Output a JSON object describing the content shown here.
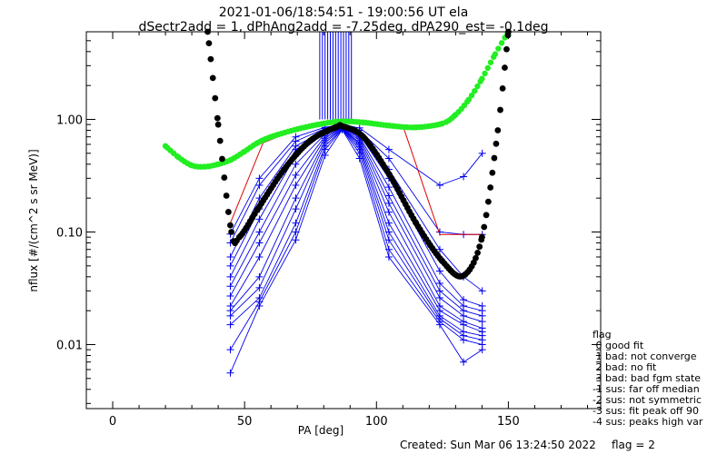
{
  "title_line1": "2021-01-06/18:54:51 - 19:00:56 UT ela",
  "title_line2": "dSectr2add = 1, dPhAng2add = -7.25deg, dPA290_est=   -0.1deg",
  "footer": {
    "created": "Created: Sun Mar 06 13:24:50 2022",
    "flag": "flag = 2"
  },
  "legend": {
    "title": "flag",
    "entries": [
      " 0 good fit",
      " 1 bad: not converge",
      " 2 bad: no fit",
      " 3 bad: bad fgm state",
      "-1 sus: far off median",
      "-2 sus: not symmetric",
      "-3 sus: fit peak off 90",
      "-4 sus: peaks high var"
    ]
  },
  "colors": {
    "data": "#0000ee",
    "fit_black": "#000000",
    "fit_green": "#22ee22",
    "median_red": "#dd0000",
    "axes": "#000000"
  },
  "chart_data": {
    "type": "line",
    "xlabel": "PA [deg]",
    "ylabel": "nflux [#/(cm^2 s sr MeV)]",
    "xlim": [
      -10,
      185
    ],
    "ylim": [
      0.0027,
      6.0
    ],
    "yscale": "log",
    "xticks": [
      0,
      50,
      100,
      150
    ],
    "xtick_labels": [
      "0",
      "50",
      "100",
      "150"
    ],
    "yticks": [
      0.01,
      0.1,
      1.0
    ],
    "ytick_labels": [
      "0.01",
      "0.10",
      "1.00"
    ],
    "pa_x": [
      44.6,
      55.6,
      69.4,
      80.5,
      87.0,
      93.6,
      104.7,
      124.0,
      133.0,
      140.1
    ],
    "series": [
      {
        "values": [
          0.096,
          0.3,
          0.7,
          0.85,
          0.9,
          0.84,
          0.54,
          0.26,
          0.31,
          0.5
        ]
      },
      {
        "values": [
          0.08,
          0.26,
          0.64,
          0.83,
          0.88,
          0.8,
          0.45,
          0.1,
          0.095,
          0.095
        ]
      },
      {
        "values": [
          0.06,
          0.2,
          0.58,
          0.8,
          0.87,
          0.76,
          0.36,
          0.07,
          0.04,
          0.03
        ]
      },
      {
        "values": [
          0.05,
          0.16,
          0.54,
          0.78,
          0.86,
          0.73,
          0.3,
          0.045,
          0.025,
          0.022
        ]
      },
      {
        "values": [
          0.04,
          0.13,
          0.48,
          0.76,
          0.86,
          0.7,
          0.25,
          0.035,
          0.022,
          0.02
        ]
      },
      {
        "values": [
          0.033,
          0.1,
          0.4,
          0.74,
          0.85,
          0.68,
          0.21,
          0.03,
          0.02,
          0.018
        ]
      },
      {
        "values": [
          0.027,
          0.08,
          0.32,
          0.71,
          0.84,
          0.65,
          0.18,
          0.026,
          0.018,
          0.016
        ]
      },
      {
        "values": [
          0.022,
          0.06,
          0.26,
          0.68,
          0.84,
          0.62,
          0.15,
          0.022,
          0.016,
          0.014
        ]
      },
      {
        "values": [
          0.02,
          0.04,
          0.2,
          0.65,
          0.83,
          0.6,
          0.12,
          0.02,
          0.015,
          0.013
        ]
      },
      {
        "values": [
          0.018,
          0.032,
          0.16,
          0.62,
          0.83,
          0.57,
          0.1,
          0.018,
          0.013,
          0.012
        ]
      },
      {
        "values": [
          0.015,
          0.026,
          0.12,
          0.58,
          0.82,
          0.54,
          0.085,
          0.017,
          0.012,
          0.011
        ]
      },
      {
        "values": [
          0.009,
          0.024,
          0.1,
          0.54,
          0.82,
          0.5,
          0.07,
          0.016,
          0.011,
          0.01
        ]
      },
      {
        "values": [
          0.0056,
          0.022,
          0.085,
          0.48,
          0.81,
          0.45,
          0.06,
          0.015,
          0.007,
          0.009
        ]
      }
    ],
    "vertical_lines": {
      "x": [
        78.5,
        79.5,
        80.5,
        81.5,
        82.5,
        83.5,
        84.5,
        85.5,
        86.5,
        87.5,
        88.5,
        89.5,
        90.5
      ],
      "y_from": 1.0,
      "y_to": 6.0
    },
    "median_red": {
      "x": [
        44.6,
        57,
        70,
        80.5,
        87,
        93.6,
        110,
        124,
        133,
        140.1
      ],
      "y": [
        0.12,
        0.62,
        0.82,
        0.96,
        0.98,
        0.94,
        0.88,
        0.095,
        0.095,
        0.095
      ]
    },
    "fit_black": {
      "x_range": [
        36,
        150
      ],
      "description_points_x": [
        36,
        40,
        45,
        48,
        55,
        65,
        75,
        85,
        87,
        95,
        105,
        115,
        125,
        133,
        140,
        146,
        150
      ],
      "description_points_y": [
        6.0,
        0.9,
        0.1,
        0.09,
        0.16,
        0.36,
        0.65,
        0.86,
        0.87,
        0.7,
        0.32,
        0.12,
        0.055,
        0.041,
        0.09,
        0.8,
        6.0
      ]
    },
    "fit_green": {
      "x": [
        20,
        25,
        30,
        35,
        40,
        45,
        50,
        55,
        60,
        70,
        80,
        87,
        95,
        105,
        115,
        125,
        130,
        135,
        140,
        145,
        150
      ],
      "y": [
        0.58,
        0.46,
        0.39,
        0.38,
        0.4,
        0.44,
        0.52,
        0.62,
        0.7,
        0.82,
        0.92,
        0.96,
        0.94,
        0.88,
        0.85,
        0.92,
        1.1,
        1.5,
        2.3,
        3.8,
        6.0
      ]
    }
  }
}
